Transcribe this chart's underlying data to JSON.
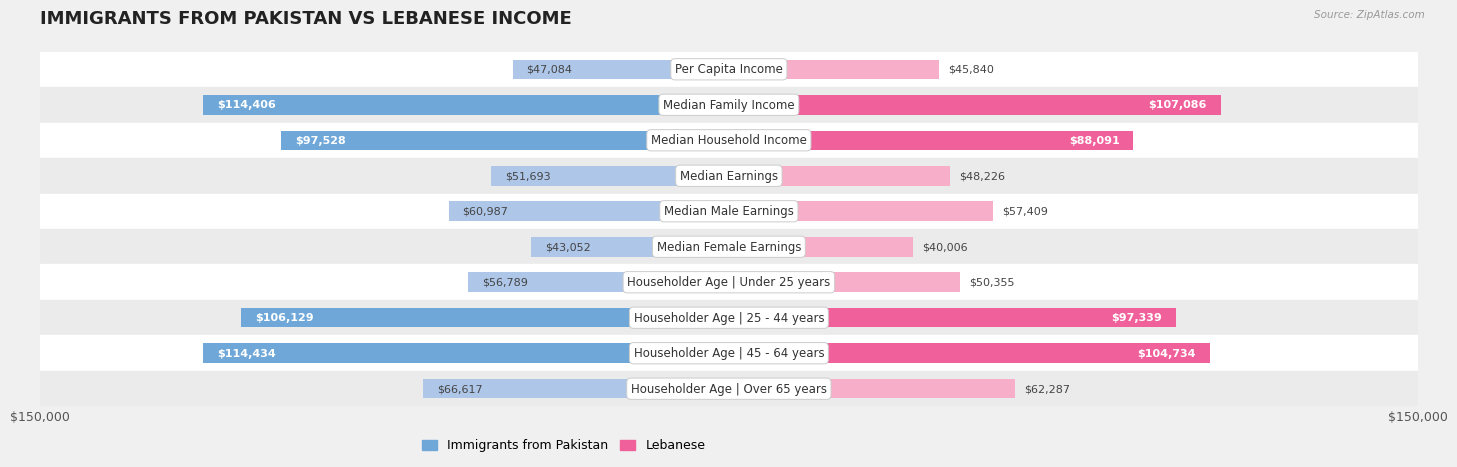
{
  "title": "IMMIGRANTS FROM PAKISTAN VS LEBANESE INCOME",
  "source": "Source: ZipAtlas.com",
  "categories": [
    "Per Capita Income",
    "Median Family Income",
    "Median Household Income",
    "Median Earnings",
    "Median Male Earnings",
    "Median Female Earnings",
    "Householder Age | Under 25 years",
    "Householder Age | 25 - 44 years",
    "Householder Age | 45 - 64 years",
    "Householder Age | Over 65 years"
  ],
  "pakistan_values": [
    47084,
    114406,
    97528,
    51693,
    60987,
    43052,
    56789,
    106129,
    114434,
    66617
  ],
  "lebanese_values": [
    45840,
    107086,
    88091,
    48226,
    57409,
    40006,
    50355,
    97339,
    104734,
    62287
  ],
  "pak_bar_light": "#aec6e8",
  "pak_bar_dark": "#6fa8d8",
  "leb_bar_light": "#f7aec8",
  "leb_bar_dark": "#f0609a",
  "max_value": 150000,
  "x_label_left": "$150,000",
  "x_label_right": "$150,000",
  "legend_pakistan": "Immigrants from Pakistan",
  "legend_lebanese": "Lebanese",
  "bg_color": "#f0f0f0",
  "row_white": "#ffffff",
  "row_gray": "#ebebeb",
  "title_fontsize": 13,
  "cat_fontsize": 8.5,
  "val_fontsize": 8.0,
  "inside_threshold": 75000
}
